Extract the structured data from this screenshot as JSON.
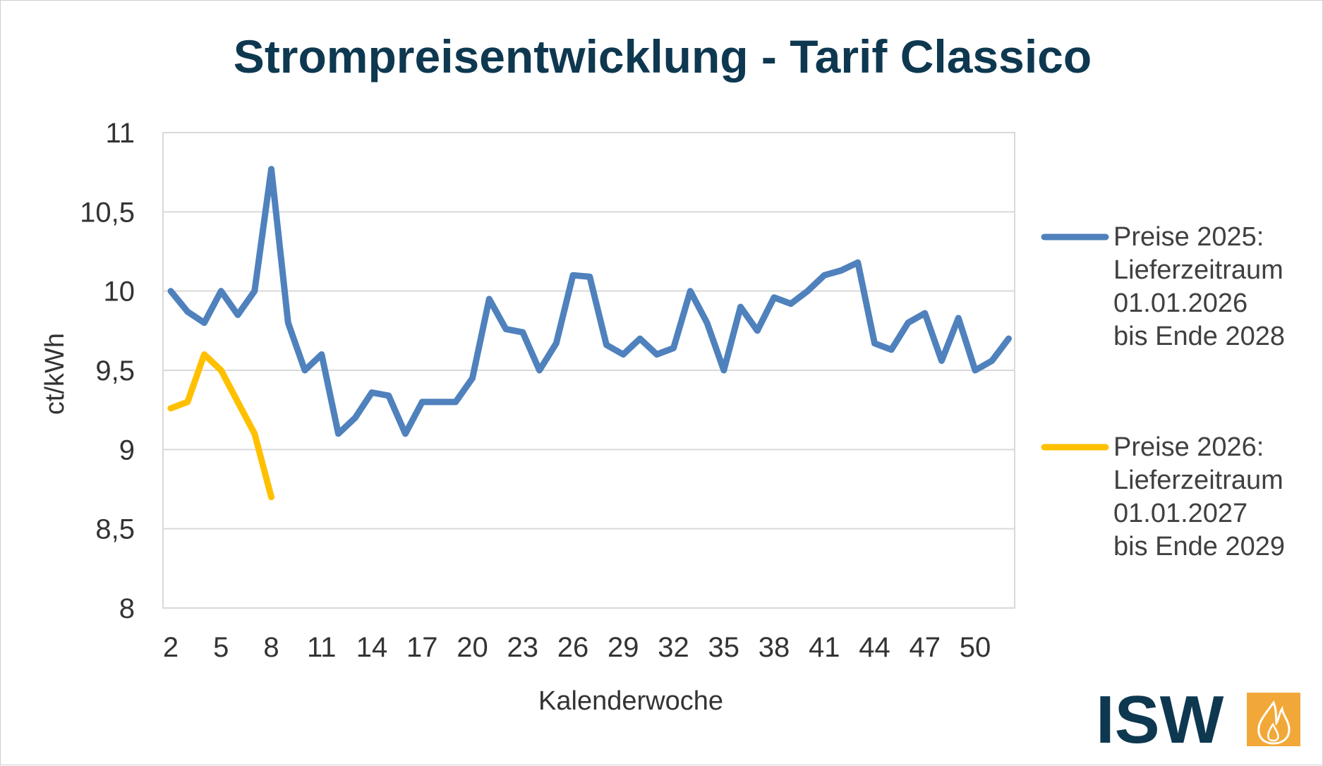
{
  "chart_data": {
    "type": "line",
    "title": "Strompreisentwicklung - Tarif Classico",
    "xlabel": "Kalenderwoche",
    "ylabel": "ct/kWh",
    "ylim": [
      8,
      11
    ],
    "xlim": [
      2,
      52
    ],
    "yticks": [
      8,
      8.5,
      9,
      9.5,
      10,
      10.5,
      11
    ],
    "ytick_labels": [
      "8",
      "8,5",
      "9",
      "9,5",
      "10",
      "10,5",
      "11"
    ],
    "xticks": [
      2,
      5,
      8,
      11,
      14,
      17,
      20,
      23,
      26,
      29,
      32,
      35,
      38,
      41,
      44,
      47,
      50
    ],
    "xtick_labels": [
      "2",
      "5",
      "8",
      "11",
      "14",
      "17",
      "20",
      "23",
      "26",
      "29",
      "32",
      "35",
      "38",
      "41",
      "44",
      "47",
      "50"
    ],
    "grid": true,
    "legend_position": "right",
    "series": [
      {
        "name": "Preise 2025: Lieferzeitraum 01.01.2026 bis Ende 2028",
        "legend_lines": [
          "Preise 2025:",
          "Lieferzeitraum",
          "01.01.2026",
          "bis Ende 2028"
        ],
        "color": "#4f81bd",
        "x": [
          2,
          3,
          4,
          5,
          6,
          7,
          8,
          9,
          10,
          11,
          12,
          13,
          14,
          15,
          16,
          17,
          18,
          19,
          20,
          21,
          22,
          23,
          24,
          25,
          26,
          27,
          28,
          29,
          30,
          31,
          32,
          33,
          34,
          35,
          36,
          37,
          38,
          39,
          40,
          41,
          42,
          43,
          44,
          45,
          46,
          47,
          48,
          49,
          50,
          51,
          52
        ],
        "values": [
          10.0,
          9.87,
          9.8,
          10.0,
          9.85,
          10.0,
          10.77,
          9.8,
          9.5,
          9.6,
          9.1,
          9.2,
          9.36,
          9.34,
          9.1,
          9.3,
          9.3,
          9.3,
          9.45,
          9.95,
          9.76,
          9.74,
          9.5,
          9.67,
          10.1,
          10.09,
          9.66,
          9.6,
          9.7,
          9.6,
          9.64,
          10.0,
          9.8,
          9.5,
          9.9,
          9.75,
          9.96,
          9.92,
          10.0,
          10.1,
          10.13,
          10.18,
          9.67,
          9.63,
          9.8,
          9.86,
          9.56,
          9.83,
          9.5,
          9.56,
          9.7
        ]
      },
      {
        "name": "Preise 2026: Lieferzeitraum 01.01.2027 bis Ende 2029",
        "legend_lines": [
          "Preise 2026:",
          "Lieferzeitraum",
          "01.01.2027",
          "bis Ende 2029"
        ],
        "color": "#ffc000",
        "x": [
          2,
          3,
          4,
          5,
          6,
          7,
          8
        ],
        "values": [
          9.26,
          9.3,
          9.6,
          9.5,
          9.3,
          9.1,
          8.7
        ]
      }
    ]
  },
  "logo": {
    "text": "ISW",
    "icon": "flame-icon",
    "text_color": "#0e3850",
    "icon_bg": "#f2a838"
  }
}
